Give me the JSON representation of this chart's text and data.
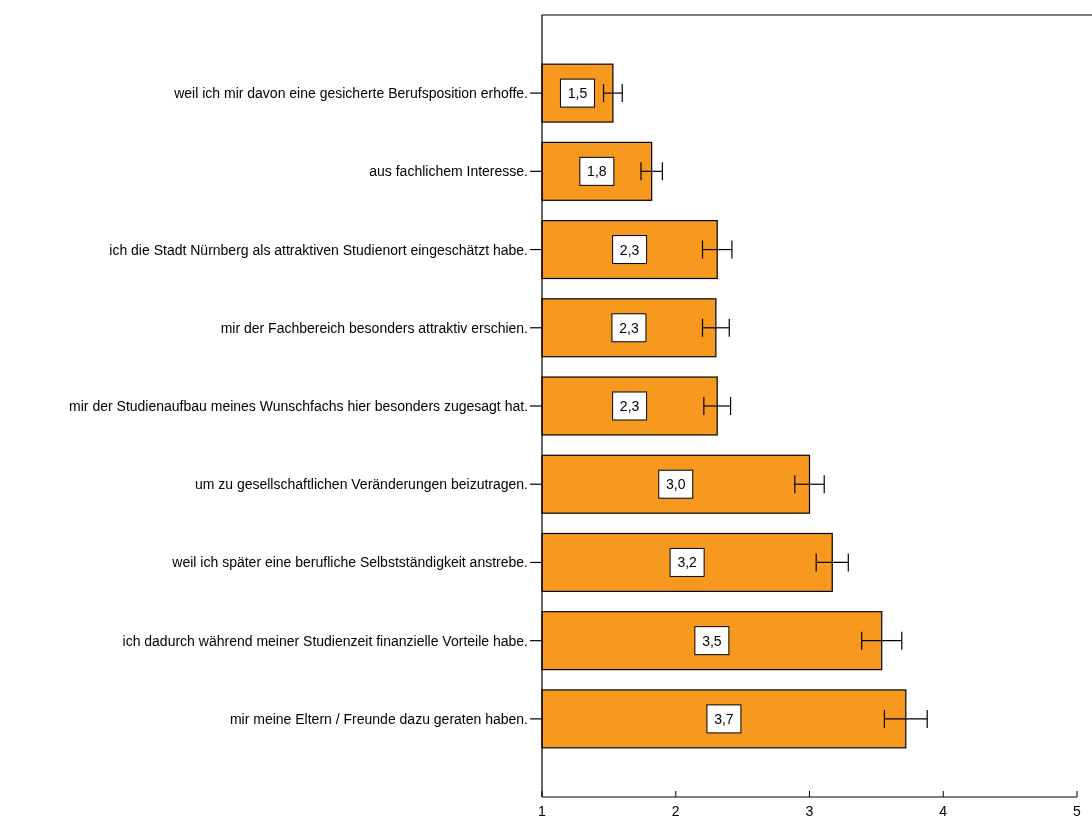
{
  "chart_data": {
    "type": "bar",
    "orientation": "horizontal",
    "categories": [
      "weil ich mir davon eine gesicherte Berufsposition erhoffe.",
      "aus fachlichem Interesse.",
      "ich die Stadt Nürnberg als attraktiven Studienort eingeschätzt habe.",
      "mir der Fachbereich besonders attraktiv erschien.",
      "mir der Studienaufbau meines Wunschfachs hier besonders zugesagt hat.",
      "um zu gesellschaftlichen Veränderungen beizutragen.",
      "weil ich später eine berufliche Selbstständigkeit anstrebe.",
      "ich dadurch während meiner Studienzeit finanzielle Vorteile habe.",
      "mir meine Eltern / Freunde dazu geraten haben."
    ],
    "values": [
      1.53,
      1.82,
      2.31,
      2.3,
      2.31,
      3.0,
      3.17,
      3.54,
      3.72
    ],
    "value_labels": [
      "1,5",
      "1,8",
      "2,3",
      "2,3",
      "2,3",
      "3,0",
      "3,2",
      "3,5",
      "3,7"
    ],
    "errors": [
      0.07,
      0.08,
      0.11,
      0.1,
      0.1,
      0.11,
      0.12,
      0.15,
      0.16
    ],
    "color": "#f7991f",
    "xlim": [
      1,
      5
    ],
    "xticks": [
      1,
      2,
      3,
      4,
      5
    ],
    "grid": false
  }
}
